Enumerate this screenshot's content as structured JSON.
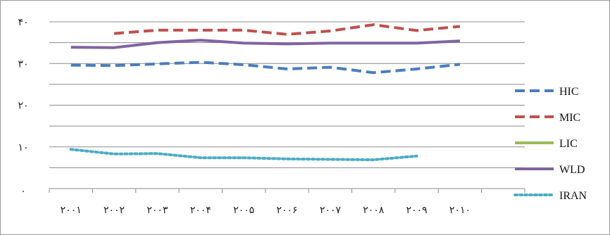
{
  "chart_data": {
    "type": "line",
    "title": "",
    "xlabel": "",
    "ylabel": "",
    "categories": [
      "۲۰۰۱",
      "۲۰۰۲",
      "۲۰۰۳",
      "۲۰۰۴",
      "۲۰۰۵",
      "۲۰۰۶",
      "۲۰۰۷",
      "۲۰۰۸",
      "۲۰۰۹",
      "۲۰۱۰"
    ],
    "y_ticks": [
      {
        "value": 0,
        "label": "."
      },
      {
        "value": 10,
        "label": "۱۰"
      },
      {
        "value": 20,
        "label": "۲۰"
      },
      {
        "value": 30,
        "label": "۳۰"
      },
      {
        "value": 40,
        "label": "۴۰"
      }
    ],
    "ylim": [
      0,
      40
    ],
    "grid": true,
    "legend_position": "right",
    "series": [
      {
        "name": "HIC",
        "style": "dashed",
        "color": "#4a7ebb",
        "values": [
          29.6,
          29.5,
          29.9,
          30.3,
          29.7,
          28.7,
          29.1,
          27.8,
          28.7,
          29.8
        ]
      },
      {
        "name": "MIC",
        "style": "dashed",
        "color": "#c0504d",
        "values": [
          null,
          37.2,
          38.0,
          38.0,
          38.0,
          37.0,
          37.8,
          39.3,
          37.9,
          38.9
        ]
      },
      {
        "name": "LIC",
        "style": "solid",
        "color": "#9bbb59",
        "values": [
          null,
          null,
          null,
          null,
          null,
          null,
          null,
          null,
          null,
          null
        ]
      },
      {
        "name": "WLD",
        "style": "solid",
        "color": "#8064a2",
        "values": [
          33.9,
          33.8,
          35.0,
          35.6,
          34.9,
          34.7,
          34.9,
          34.9,
          34.9,
          35.4
        ]
      },
      {
        "name": "IRAN",
        "style": "dotted",
        "color": "#4bacc6",
        "values": [
          9.4,
          8.3,
          8.4,
          7.4,
          7.4,
          7.1,
          7.0,
          6.9,
          7.8,
          null
        ]
      }
    ]
  }
}
